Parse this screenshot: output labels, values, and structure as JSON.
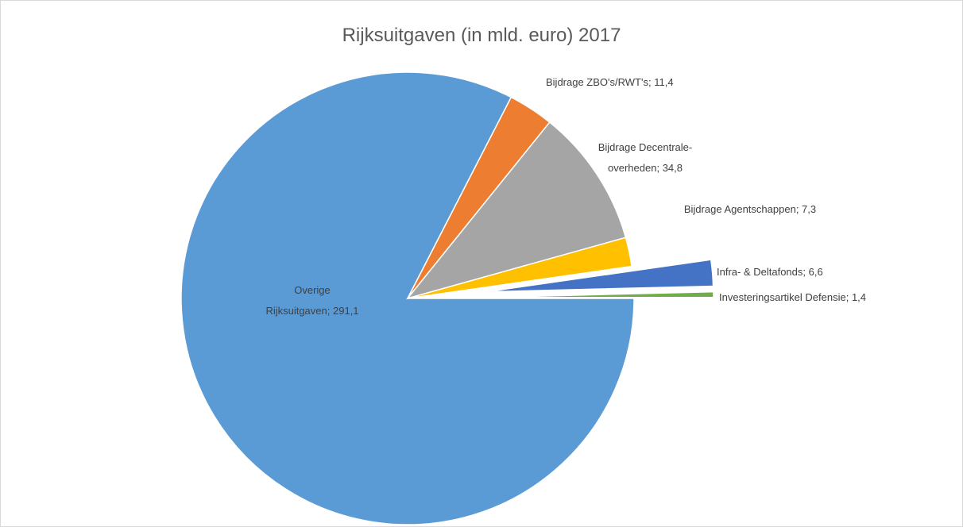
{
  "chart_data": {
    "type": "pie",
    "title": "Rijksuitgaven (in mld. euro) 2017",
    "categories": [
      "Overige Rijksuitgaven",
      "Bijdrage ZBO's/RWT's",
      "Bijdrage Decentrale-overheden",
      "Bijdrage Agentschappen",
      "Infra- & Deltafonds",
      "Investeringsartikel Defensie"
    ],
    "values": [
      291.1,
      11.4,
      34.8,
      7.3,
      6.6,
      1.4
    ],
    "value_labels": [
      "291,1",
      "11,4",
      "34,8",
      "7,3",
      "6,6",
      "1,4"
    ],
    "label_separator": "; ",
    "colors": [
      "#5b9bd5",
      "#ed7d31",
      "#a5a5a5",
      "#ffc000",
      "#4472c4",
      "#70ad47"
    ],
    "exploded": [
      false,
      false,
      false,
      false,
      true,
      true
    ]
  }
}
